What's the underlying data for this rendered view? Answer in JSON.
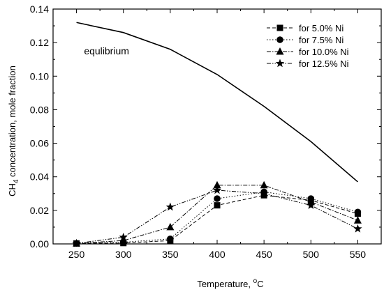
{
  "chart_data": {
    "type": "line",
    "title": "",
    "xlabel": "Temperature, °C",
    "ylabel": "CH4 concentration, mole fraction",
    "xlim": [
      225,
      575
    ],
    "ylim": [
      0,
      0.14
    ],
    "x_ticks": [
      250,
      300,
      350,
      400,
      450,
      500,
      550
    ],
    "x_tick_labels": [
      "250",
      "300",
      "350",
      "400",
      "450",
      "500",
      "550"
    ],
    "y_ticks": [
      0.0,
      0.02,
      0.04,
      0.06,
      0.08,
      0.1,
      0.12,
      0.14
    ],
    "y_tick_labels": [
      "0.00",
      "0.02",
      "0.04",
      "0.06",
      "0.08",
      "0.10",
      "0.12",
      "0.14"
    ],
    "grid": false,
    "legend_position": "top-right",
    "annotations": [
      {
        "text": "equlibrium",
        "x": 258,
        "y": 0.113
      }
    ],
    "series": [
      {
        "name": "",
        "marker": "none",
        "line": "solid",
        "x": [
          250,
          300,
          350,
          400,
          450,
          500,
          550
        ],
        "y": [
          0.132,
          0.126,
          0.116,
          0.101,
          0.082,
          0.061,
          0.037
        ]
      },
      {
        "name": "for 5.0% Ni",
        "marker": "square",
        "line": "dashed",
        "x": [
          250,
          300,
          350,
          400,
          450,
          500,
          550
        ],
        "y": [
          0.0003,
          0.0005,
          0.002,
          0.023,
          0.029,
          0.026,
          0.018
        ]
      },
      {
        "name": "for 7.5% Ni",
        "marker": "circle",
        "line": "dotted",
        "x": [
          250,
          300,
          350,
          400,
          450,
          500,
          550
        ],
        "y": [
          0.0003,
          0.001,
          0.003,
          0.027,
          0.031,
          0.027,
          0.019
        ]
      },
      {
        "name": "for 10.0% Ni",
        "marker": "triangle",
        "line": "dashdot",
        "x": [
          250,
          300,
          350,
          400,
          450,
          500,
          550
        ],
        "y": [
          0.0003,
          0.002,
          0.01,
          0.035,
          0.035,
          0.025,
          0.014
        ]
      },
      {
        "name": "for 12.5% Ni",
        "marker": "star",
        "line": "dashdotdot",
        "x": [
          250,
          300,
          350,
          400,
          450,
          500,
          550
        ],
        "y": [
          0.0003,
          0.004,
          0.022,
          0.032,
          0.03,
          0.023,
          0.009
        ]
      }
    ]
  }
}
